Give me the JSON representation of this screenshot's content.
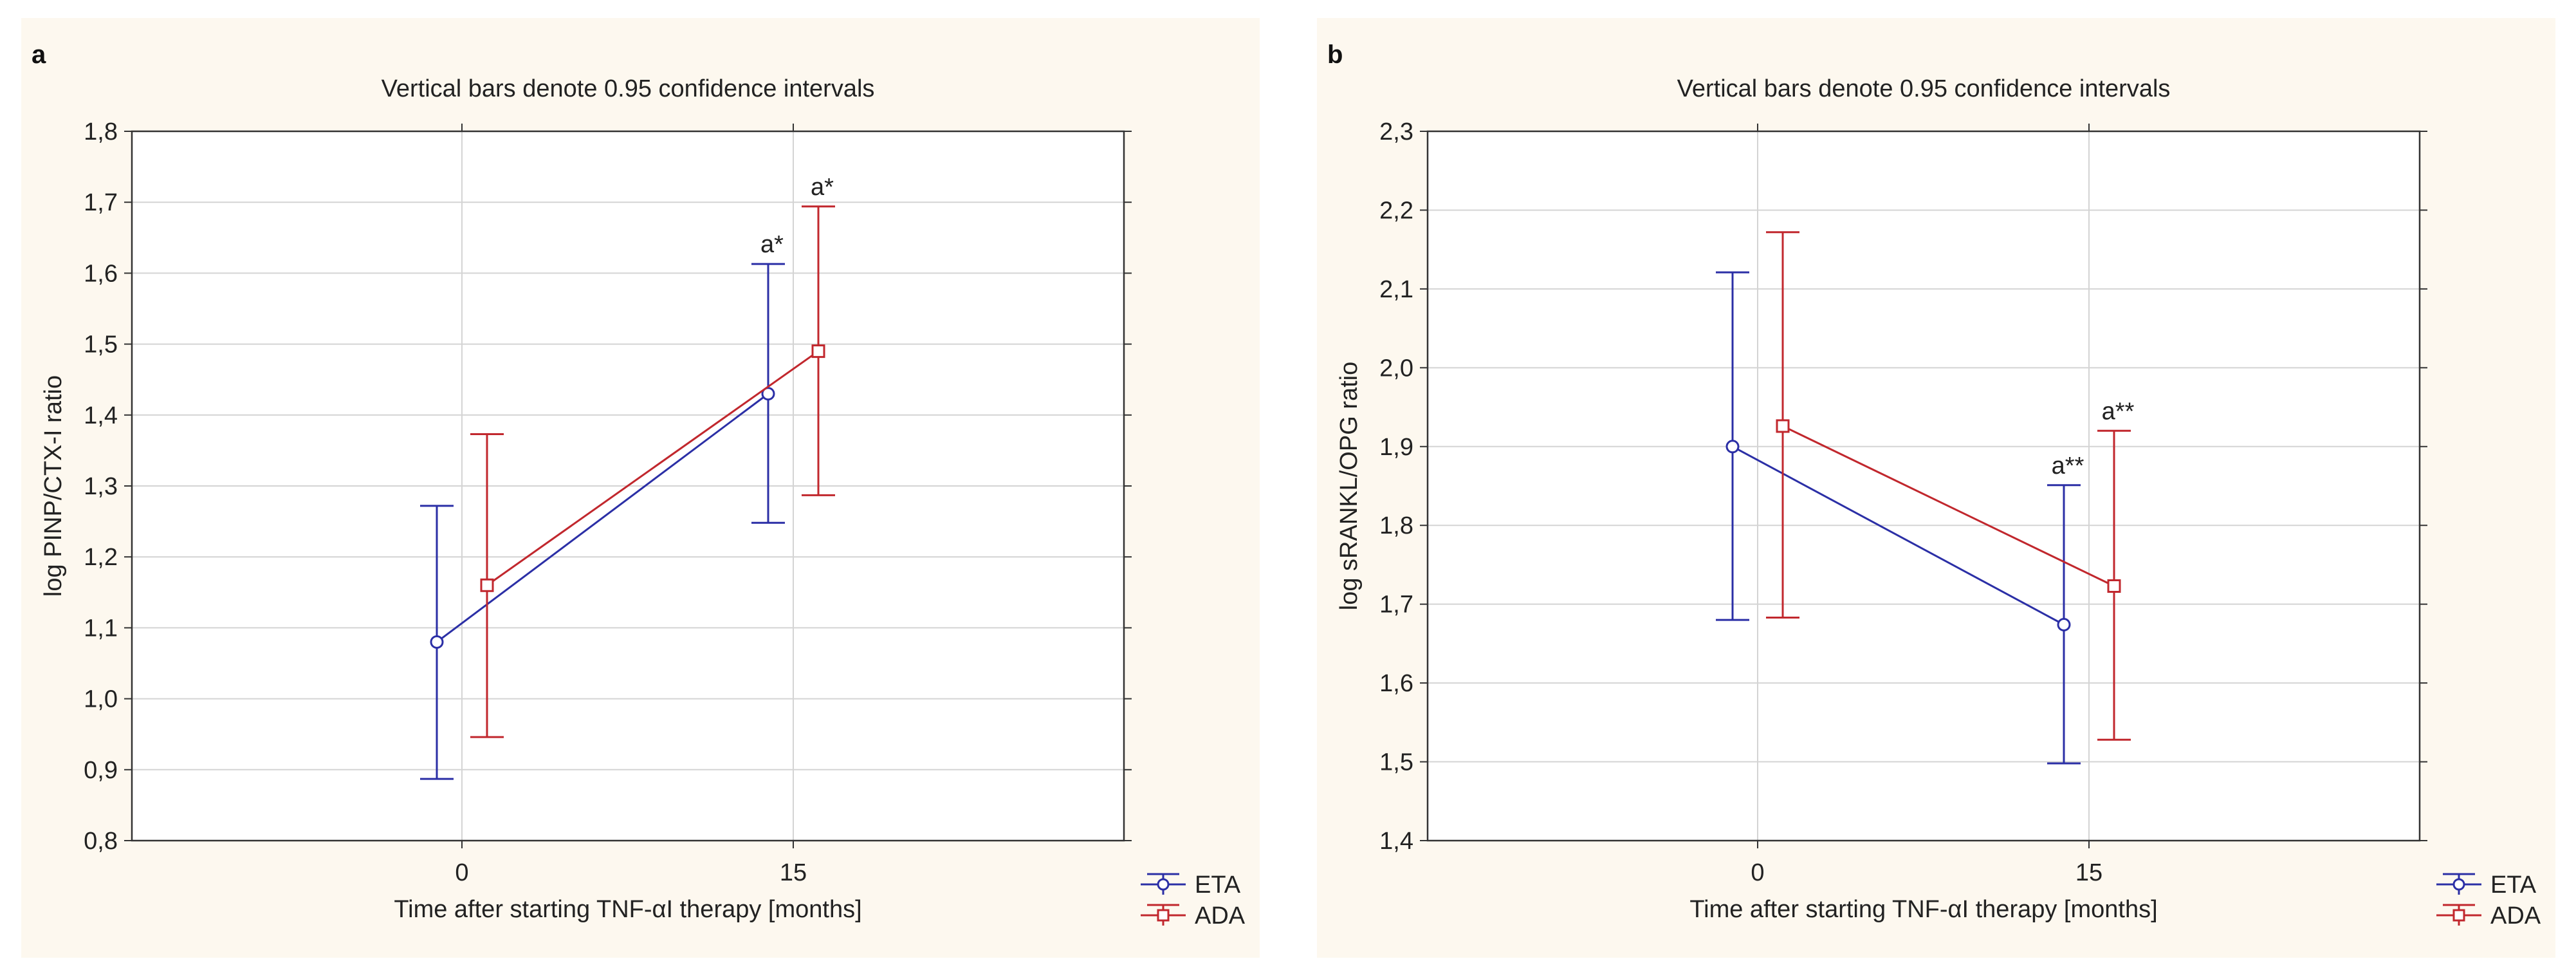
{
  "chart_data": [
    {
      "type": "line",
      "panel_label": "a",
      "title": "Vertical bars denote 0.95 confidence intervals",
      "xlabel": "Time after starting TNF-αI therapy [months]",
      "ylabel": "log PINP/CTX-I ratio",
      "categories": [
        "0",
        "15"
      ],
      "ylim": [
        0.8,
        1.8
      ],
      "yticks": [
        "0,8",
        "0,9",
        "1,0",
        "1,1",
        "1,2",
        "1,3",
        "1,4",
        "1,5",
        "1,6",
        "1,7",
        "1,8"
      ],
      "grid": true,
      "legend": "bottom-right",
      "series": [
        {
          "name": "ETA",
          "color": "#2b2fa6",
          "marker": "circle",
          "values": [
            1.08,
            1.43
          ],
          "ci_low": [
            0.887,
            1.248
          ],
          "ci_high": [
            1.272,
            1.613
          ],
          "annotations": [
            "",
            "a*"
          ]
        },
        {
          "name": "ADA",
          "color": "#c1272d",
          "marker": "square",
          "values": [
            1.16,
            1.49
          ],
          "ci_low": [
            0.946,
            1.287
          ],
          "ci_high": [
            1.373,
            1.694
          ],
          "annotations": [
            "",
            "a*"
          ]
        }
      ]
    },
    {
      "type": "line",
      "panel_label": "b",
      "title": "Vertical bars denote 0.95 confidence intervals",
      "xlabel": "Time after starting TNF-αI therapy [months]",
      "ylabel": "log sRANKL/OPG ratio",
      "categories": [
        "0",
        "15"
      ],
      "ylim": [
        1.4,
        2.3
      ],
      "yticks": [
        "1,4",
        "1,5",
        "1,6",
        "1,7",
        "1,8",
        "1,9",
        "2,0",
        "2,1",
        "2,2",
        "2,3"
      ],
      "grid": true,
      "legend": "bottom-right",
      "series": [
        {
          "name": "ETA",
          "color": "#2b2fa6",
          "marker": "circle",
          "values": [
            1.9,
            1.674
          ],
          "ci_low": [
            1.68,
            1.498
          ],
          "ci_high": [
            2.121,
            1.851
          ],
          "annotations": [
            "",
            "a**"
          ]
        },
        {
          "name": "ADA",
          "color": "#c1272d",
          "marker": "square",
          "values": [
            1.926,
            1.723
          ],
          "ci_low": [
            1.683,
            1.528
          ],
          "ci_high": [
            2.172,
            1.92
          ],
          "annotations": [
            "",
            "a**"
          ]
        }
      ]
    }
  ]
}
